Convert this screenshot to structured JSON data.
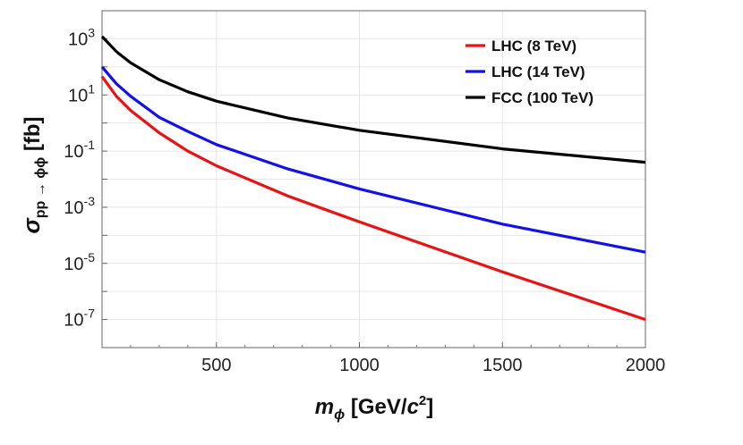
{
  "chart_data": {
    "type": "line",
    "title": "",
    "xlabel": {
      "base": "m",
      "sub": "ϕ",
      "unit_prefix": " [GeV/",
      "unit_var": "c",
      "unit_sup": "2",
      "unit_suffix": "]"
    },
    "ylabel": {
      "base": "σ",
      "sub": "pp → ϕϕ",
      "unit": " [fb]"
    },
    "x_scale": "linear",
    "y_scale": "log",
    "xlim": [
      100,
      2000
    ],
    "ylim": [
      1e-08,
      10000
    ],
    "grid": true,
    "legend_position": "top-right",
    "x_ticks": [
      {
        "value": 500,
        "label": "500"
      },
      {
        "value": 1000,
        "label": "1000"
      },
      {
        "value": 1500,
        "label": "1500"
      },
      {
        "value": 2000,
        "label": "2000"
      }
    ],
    "y_ticks": [
      {
        "value": 1000.0,
        "base": "10",
        "exp": "3"
      },
      {
        "value": 10.0,
        "base": "10",
        "exp": "1"
      },
      {
        "value": 0.1,
        "base": "10",
        "exp": "-1"
      },
      {
        "value": 0.001,
        "base": "10",
        "exp": "-3"
      },
      {
        "value": 1e-05,
        "base": "10",
        "exp": "-5"
      },
      {
        "value": 1e-07,
        "base": "10",
        "exp": "-7"
      }
    ],
    "x": [
      100,
      150,
      200,
      300,
      400,
      500,
      750,
      1000,
      1500,
      2000
    ],
    "series": [
      {
        "name": "LHC (8 TeV)",
        "color": "#ee1111",
        "values": [
          45,
          9,
          2.8,
          0.45,
          0.1,
          0.03,
          0.0025,
          0.0003,
          5e-06,
          1e-07
        ]
      },
      {
        "name": "LHC (14 TeV)",
        "color": "#1111ee",
        "values": [
          100,
          25,
          9,
          1.6,
          0.5,
          0.17,
          0.023,
          0.0045,
          0.00025,
          2.5e-05
        ]
      },
      {
        "name": "FCC (100 TeV)",
        "color": "#000000",
        "values": [
          1200,
          350,
          140,
          35,
          13,
          6,
          1.5,
          0.55,
          0.12,
          0.04
        ]
      }
    ]
  }
}
